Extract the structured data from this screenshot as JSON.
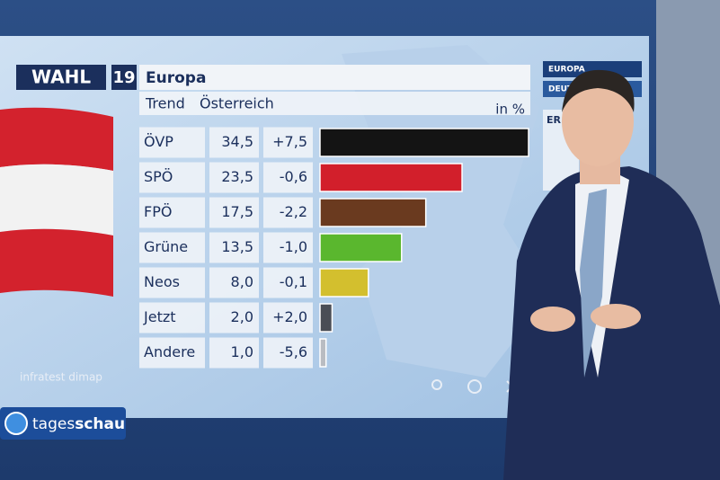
{
  "chart_data": {
    "type": "bar",
    "orientation": "horizontal",
    "brand": "WAHL",
    "brand_year": "19",
    "title": "Europa",
    "subtitle_left": "Trend",
    "subtitle": "Österreich",
    "unit": "in %",
    "categories": [
      "ÖVP",
      "SPÖ",
      "FPÖ",
      "Grüne",
      "Neos",
      "Jetzt",
      "Andere"
    ],
    "values": [
      34.5,
      23.5,
      17.5,
      13.5,
      8.0,
      2.0,
      1.0
    ],
    "value_labels": [
      "34,5",
      "23,5",
      "17,5",
      "13,5",
      "8,0",
      "2,0",
      "1,0"
    ],
    "changes": [
      "+7,5",
      "-0,6",
      "-2,2",
      "-1,0",
      "-0,1",
      "+2,0",
      "-5,6"
    ],
    "colors": [
      "#141414",
      "#d21f2b",
      "#6a3a1f",
      "#5ab72e",
      "#d3bf2e",
      "#4a4d55",
      "#b9bcc2"
    ],
    "source": "infratest dimap",
    "side_tabs": [
      "EUROPA",
      "DEUTS",
      "ER"
    ],
    "logo_a": "tages",
    "logo_b": "schau"
  }
}
